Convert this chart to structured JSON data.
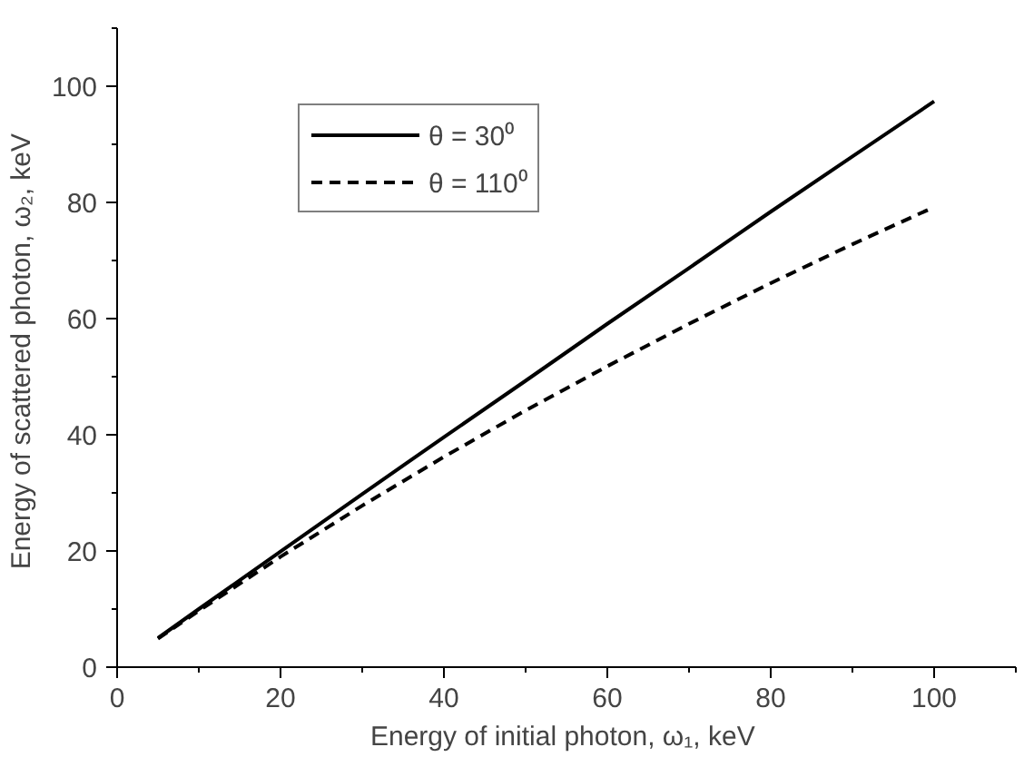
{
  "chart_data": {
    "type": "line",
    "xlabel": "Energy of initial photon,  ω₁, keV",
    "ylabel": "Energy of scattered photon,  ω₂, keV",
    "x": [
      5,
      10,
      20,
      30,
      40,
      50,
      60,
      70,
      80,
      90,
      100
    ],
    "series": [
      {
        "name": "θ = 30⁰",
        "color": "#000000",
        "line_style": "solid",
        "values": [
          5.0,
          10.0,
          19.9,
          29.8,
          39.6,
          49.3,
          59.1,
          68.7,
          78.4,
          87.9,
          97.4
        ]
      },
      {
        "name": "θ = 110⁰",
        "color": "#000000",
        "line_style": "dashed",
        "values": [
          4.9,
          9.7,
          19.0,
          27.8,
          36.2,
          44.2,
          51.8,
          59.1,
          66.1,
          72.8,
          79.2
        ]
      }
    ],
    "xlim": [
      0,
      110
    ],
    "ylim": [
      0,
      110
    ],
    "xticks": [
      0,
      {
        "value": 10,
        "label": null
      },
      20,
      {
        "value": 30,
        "label": null
      },
      40,
      {
        "value": 50,
        "label": null
      },
      60,
      {
        "value": 70,
        "label": null
      },
      80,
      {
        "value": 90,
        "label": null
      },
      100,
      {
        "value": 110,
        "label": null
      }
    ],
    "yticks": [
      0,
      {
        "value": 10,
        "label": null
      },
      20,
      {
        "value": 30,
        "label": null
      },
      40,
      {
        "value": 50,
        "label": null
      },
      60,
      {
        "value": 70,
        "label": null
      },
      80,
      {
        "value": 90,
        "label": null
      },
      100,
      {
        "value": 110,
        "label": null
      }
    ],
    "grid": false,
    "legend": "top left"
  }
}
